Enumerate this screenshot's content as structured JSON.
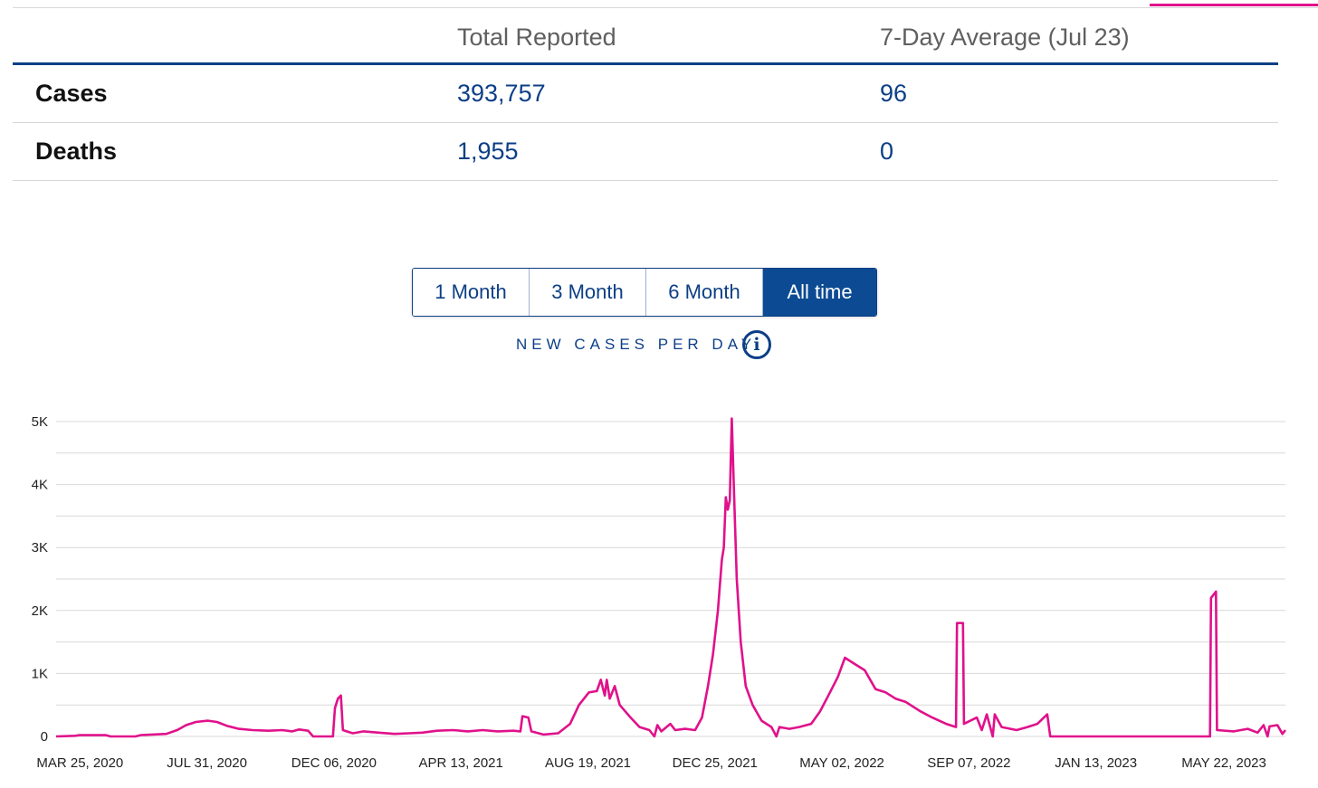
{
  "table": {
    "headers": [
      "",
      "Total Reported",
      "7-Day Average (Jul 23)"
    ],
    "rows": [
      {
        "label": "Cases",
        "total": "393,757",
        "avg": "96"
      },
      {
        "label": "Deaths",
        "total": "1,955",
        "avg": "0"
      }
    ]
  },
  "range_buttons": [
    {
      "label": "1 Month",
      "active": false
    },
    {
      "label": "3 Month",
      "active": false
    },
    {
      "label": "6 Month",
      "active": false
    },
    {
      "label": "All time",
      "active": true
    }
  ],
  "chart_title": "NEW CASES PER DAY",
  "info_icon": "info-icon",
  "colors": {
    "accent": "#e0118b",
    "brand_blue": "#0c3f86",
    "active_button": "#0c4b93",
    "gridline": "#d9d9d9"
  },
  "chart_data": {
    "type": "line",
    "title": "",
    "xlabel": "",
    "ylabel": "",
    "ylim": [
      0,
      5000
    ],
    "y_ticks": [
      {
        "value": 0,
        "label": "0"
      },
      {
        "value": 1000,
        "label": "1K"
      },
      {
        "value": 2000,
        "label": "2K"
      },
      {
        "value": 3000,
        "label": "3K"
      },
      {
        "value": 4000,
        "label": "4K"
      },
      {
        "value": 5000,
        "label": "5K"
      }
    ],
    "x_range": [
      "2020-03-01",
      "2023-07-23"
    ],
    "x_ticks": [
      {
        "date": "2020-03-25",
        "label": "MAR 25, 2020"
      },
      {
        "date": "2020-07-31",
        "label": "JUL 31, 2020"
      },
      {
        "date": "2020-12-06",
        "label": "DEC 06, 2020"
      },
      {
        "date": "2021-04-13",
        "label": "APR 13, 2021"
      },
      {
        "date": "2021-08-19",
        "label": "AUG 19, 2021"
      },
      {
        "date": "2021-12-25",
        "label": "DEC 25, 2021"
      },
      {
        "date": "2022-05-02",
        "label": "MAY 02, 2022"
      },
      {
        "date": "2022-09-07",
        "label": "SEP 07, 2022"
      },
      {
        "date": "2023-01-13",
        "label": "JAN 13, 2023"
      },
      {
        "date": "2023-05-22",
        "label": "MAY 22, 2023"
      }
    ],
    "grid": true,
    "series": [
      {
        "name": "",
        "color": "#e0118b",
        "points": [
          [
            "2020-03-01",
            0
          ],
          [
            "2020-03-20",
            10
          ],
          [
            "2020-03-25",
            20
          ],
          [
            "2020-04-20",
            20
          ],
          [
            "2020-04-25",
            0
          ],
          [
            "2020-05-20",
            0
          ],
          [
            "2020-05-25",
            20
          ],
          [
            "2020-06-20",
            40
          ],
          [
            "2020-07-01",
            100
          ],
          [
            "2020-07-10",
            180
          ],
          [
            "2020-07-20",
            230
          ],
          [
            "2020-08-01",
            250
          ],
          [
            "2020-08-10",
            230
          ],
          [
            "2020-08-20",
            170
          ],
          [
            "2020-09-01",
            120
          ],
          [
            "2020-09-15",
            100
          ],
          [
            "2020-10-01",
            90
          ],
          [
            "2020-10-15",
            100
          ],
          [
            "2020-10-25",
            80
          ],
          [
            "2020-11-01",
            110
          ],
          [
            "2020-11-10",
            90
          ],
          [
            "2020-11-15",
            0
          ],
          [
            "2020-12-05",
            0
          ],
          [
            "2020-12-07",
            450
          ],
          [
            "2020-12-10",
            600
          ],
          [
            "2020-12-13",
            650
          ],
          [
            "2020-12-15",
            100
          ],
          [
            "2020-12-25",
            50
          ],
          [
            "2021-01-05",
            80
          ],
          [
            "2021-01-20",
            60
          ],
          [
            "2021-02-05",
            40
          ],
          [
            "2021-02-20",
            50
          ],
          [
            "2021-03-05",
            60
          ],
          [
            "2021-03-20",
            90
          ],
          [
            "2021-04-05",
            100
          ],
          [
            "2021-04-20",
            80
          ],
          [
            "2021-05-05",
            100
          ],
          [
            "2021-05-20",
            80
          ],
          [
            "2021-06-05",
            90
          ],
          [
            "2021-06-12",
            80
          ],
          [
            "2021-06-14",
            320
          ],
          [
            "2021-06-20",
            300
          ],
          [
            "2021-06-23",
            80
          ],
          [
            "2021-07-05",
            30
          ],
          [
            "2021-07-20",
            50
          ],
          [
            "2021-08-01",
            200
          ],
          [
            "2021-08-10",
            500
          ],
          [
            "2021-08-20",
            700
          ],
          [
            "2021-08-28",
            720
          ],
          [
            "2021-09-01",
            900
          ],
          [
            "2021-09-05",
            650
          ],
          [
            "2021-09-07",
            900
          ],
          [
            "2021-09-10",
            600
          ],
          [
            "2021-09-15",
            800
          ],
          [
            "2021-09-20",
            500
          ],
          [
            "2021-10-01",
            300
          ],
          [
            "2021-10-10",
            150
          ],
          [
            "2021-10-20",
            100
          ],
          [
            "2021-10-25",
            0
          ],
          [
            "2021-10-28",
            180
          ],
          [
            "2021-11-01",
            80
          ],
          [
            "2021-11-10",
            200
          ],
          [
            "2021-11-15",
            100
          ],
          [
            "2021-11-25",
            120
          ],
          [
            "2021-12-05",
            100
          ],
          [
            "2021-12-12",
            300
          ],
          [
            "2021-12-18",
            800
          ],
          [
            "2021-12-23",
            1300
          ],
          [
            "2021-12-28",
            2000
          ],
          [
            "2022-01-01",
            2800
          ],
          [
            "2022-01-03",
            3000
          ],
          [
            "2022-01-05",
            3800
          ],
          [
            "2022-01-07",
            3600
          ],
          [
            "2022-01-09",
            3750
          ],
          [
            "2022-01-11",
            5050
          ],
          [
            "2022-01-13",
            4000
          ],
          [
            "2022-01-16",
            2500
          ],
          [
            "2022-01-20",
            1500
          ],
          [
            "2022-01-25",
            800
          ],
          [
            "2022-02-01",
            500
          ],
          [
            "2022-02-10",
            250
          ],
          [
            "2022-02-20",
            150
          ],
          [
            "2022-02-25",
            0
          ],
          [
            "2022-02-28",
            150
          ],
          [
            "2022-03-10",
            120
          ],
          [
            "2022-03-20",
            150
          ],
          [
            "2022-04-01",
            200
          ],
          [
            "2022-04-10",
            400
          ],
          [
            "2022-04-20",
            700
          ],
          [
            "2022-04-28",
            950
          ],
          [
            "2022-05-05",
            1250
          ],
          [
            "2022-05-15",
            1150
          ],
          [
            "2022-05-25",
            1050
          ],
          [
            "2022-06-05",
            750
          ],
          [
            "2022-06-15",
            700
          ],
          [
            "2022-06-25",
            600
          ],
          [
            "2022-07-05",
            550
          ],
          [
            "2022-07-20",
            400
          ],
          [
            "2022-08-01",
            300
          ],
          [
            "2022-08-15",
            200
          ],
          [
            "2022-08-25",
            150
          ],
          [
            "2022-08-26",
            1800
          ],
          [
            "2022-09-01",
            1800
          ],
          [
            "2022-09-02",
            200
          ],
          [
            "2022-09-15",
            300
          ],
          [
            "2022-09-20",
            100
          ],
          [
            "2022-09-25",
            350
          ],
          [
            "2022-10-01",
            0
          ],
          [
            "2022-10-03",
            350
          ],
          [
            "2022-10-10",
            150
          ],
          [
            "2022-10-25",
            100
          ],
          [
            "2022-11-05",
            150
          ],
          [
            "2022-11-15",
            200
          ],
          [
            "2022-11-25",
            350
          ],
          [
            "2022-11-28",
            0
          ],
          [
            "2023-05-08",
            0
          ],
          [
            "2023-05-09",
            2200
          ],
          [
            "2023-05-14",
            2300
          ],
          [
            "2023-05-15",
            100
          ],
          [
            "2023-06-01",
            80
          ],
          [
            "2023-06-15",
            120
          ],
          [
            "2023-06-25",
            60
          ],
          [
            "2023-07-01",
            180
          ],
          [
            "2023-07-05",
            0
          ],
          [
            "2023-07-07",
            160
          ],
          [
            "2023-07-15",
            180
          ],
          [
            "2023-07-20",
            40
          ],
          [
            "2023-07-23",
            100
          ]
        ]
      }
    ]
  }
}
